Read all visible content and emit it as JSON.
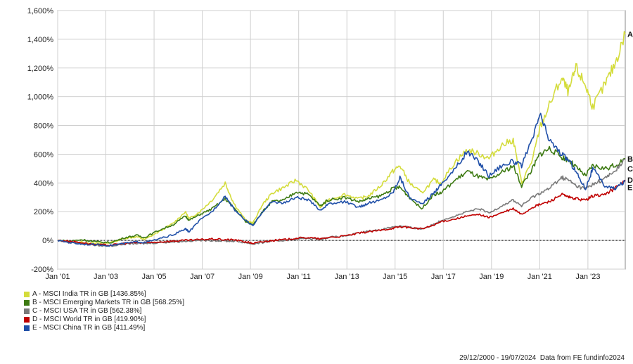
{
  "chart_data": {
    "type": "line",
    "ylim": [
      -200,
      1600
    ],
    "yticks": [
      "-200%",
      "0%",
      "200%",
      "400%",
      "600%",
      "800%",
      "1,000%",
      "1,200%",
      "1,400%",
      "1,600%"
    ],
    "yvals": [
      -200,
      0,
      200,
      400,
      600,
      800,
      1000,
      1200,
      1400,
      1600
    ],
    "xlim": [
      2001.0,
      2024.55
    ],
    "xticks": [
      "Jan '01",
      "Jan '03",
      "Jan '05",
      "Jan '07",
      "Jan '09",
      "Jan '11",
      "Jan '13",
      "Jan '15",
      "Jan '17",
      "Jan '19",
      "Jan '21",
      "Jan '23"
    ],
    "xtickvals": [
      2001,
      2003,
      2005,
      2007,
      2009,
      2011,
      2013,
      2015,
      2017,
      2019,
      2021,
      2023
    ],
    "grid": true,
    "legend_position": "bottom-left",
    "series": [
      {
        "name": "A - MSCI India TR in GB [1436.85%]",
        "end_label": "A",
        "color": "#d4dc3c",
        "points": [
          [
            2001.0,
            0
          ],
          [
            2001.5,
            -10
          ],
          [
            2002.0,
            -12
          ],
          [
            2002.6,
            -22
          ],
          [
            2003.2,
            -15
          ],
          [
            2003.8,
            15
          ],
          [
            2004.3,
            25
          ],
          [
            2004.6,
            5
          ],
          [
            2005.2,
            60
          ],
          [
            2005.8,
            120
          ],
          [
            2006.3,
            200
          ],
          [
            2006.45,
            150
          ],
          [
            2006.9,
            200
          ],
          [
            2007.4,
            280
          ],
          [
            2007.95,
            400
          ],
          [
            2008.3,
            260
          ],
          [
            2008.8,
            140
          ],
          [
            2009.1,
            120
          ],
          [
            2009.5,
            250
          ],
          [
            2009.9,
            330
          ],
          [
            2010.4,
            370
          ],
          [
            2010.9,
            420
          ],
          [
            2011.4,
            350
          ],
          [
            2011.9,
            230
          ],
          [
            2012.2,
            280
          ],
          [
            2012.9,
            320
          ],
          [
            2013.5,
            290
          ],
          [
            2013.9,
            310
          ],
          [
            2014.4,
            380
          ],
          [
            2014.9,
            480
          ],
          [
            2015.2,
            520
          ],
          [
            2015.6,
            400
          ],
          [
            2016.1,
            330
          ],
          [
            2016.6,
            420
          ],
          [
            2016.9,
            400
          ],
          [
            2017.5,
            550
          ],
          [
            2018.0,
            630
          ],
          [
            2018.5,
            600
          ],
          [
            2018.9,
            570
          ],
          [
            2019.4,
            660
          ],
          [
            2019.9,
            700
          ],
          [
            2020.25,
            400
          ],
          [
            2020.7,
            560
          ],
          [
            2021.0,
            780
          ],
          [
            2021.4,
            940
          ],
          [
            2021.9,
            1130
          ],
          [
            2022.2,
            1030
          ],
          [
            2022.5,
            1200
          ],
          [
            2022.9,
            1080
          ],
          [
            2023.2,
            930
          ],
          [
            2023.7,
            1080
          ],
          [
            2024.1,
            1220
          ],
          [
            2024.55,
            1436
          ]
        ]
      },
      {
        "name": "B - MSCI Emerging Markets TR in GB [568.25%]",
        "end_label": "B",
        "color": "#3d7a12",
        "points": [
          [
            2001.0,
            0
          ],
          [
            2001.5,
            -5
          ],
          [
            2002.0,
            5
          ],
          [
            2002.6,
            -10
          ],
          [
            2003.2,
            -15
          ],
          [
            2003.8,
            20
          ],
          [
            2004.3,
            35
          ],
          [
            2004.6,
            20
          ],
          [
            2005.2,
            70
          ],
          [
            2005.8,
            110
          ],
          [
            2006.3,
            170
          ],
          [
            2006.45,
            140
          ],
          [
            2006.9,
            180
          ],
          [
            2007.4,
            220
          ],
          [
            2007.95,
            290
          ],
          [
            2008.3,
            230
          ],
          [
            2008.8,
            130
          ],
          [
            2009.1,
            110
          ],
          [
            2009.5,
            200
          ],
          [
            2009.9,
            270
          ],
          [
            2010.4,
            280
          ],
          [
            2010.9,
            340
          ],
          [
            2011.4,
            320
          ],
          [
            2011.9,
            240
          ],
          [
            2012.2,
            280
          ],
          [
            2012.9,
            300
          ],
          [
            2013.5,
            270
          ],
          [
            2013.9,
            290
          ],
          [
            2014.4,
            310
          ],
          [
            2014.9,
            360
          ],
          [
            2015.2,
            370
          ],
          [
            2015.6,
            300
          ],
          [
            2016.1,
            220
          ],
          [
            2016.6,
            320
          ],
          [
            2016.9,
            330
          ],
          [
            2017.5,
            420
          ],
          [
            2018.0,
            480
          ],
          [
            2018.5,
            440
          ],
          [
            2018.9,
            420
          ],
          [
            2019.4,
            470
          ],
          [
            2019.9,
            520
          ],
          [
            2020.25,
            380
          ],
          [
            2020.7,
            500
          ],
          [
            2021.0,
            600
          ],
          [
            2021.4,
            640
          ],
          [
            2021.9,
            580
          ],
          [
            2022.2,
            560
          ],
          [
            2022.5,
            510
          ],
          [
            2022.9,
            450
          ],
          [
            2023.2,
            520
          ],
          [
            2023.7,
            500
          ],
          [
            2024.1,
            520
          ],
          [
            2024.55,
            568
          ]
        ]
      },
      {
        "name": "C - MSCI USA TR in GB [562.38%]",
        "end_label": "C",
        "color": "#7a7a7a",
        "points": [
          [
            2001.0,
            0
          ],
          [
            2001.5,
            -10
          ],
          [
            2002.0,
            -20
          ],
          [
            2002.6,
            -35
          ],
          [
            2003.2,
            -38
          ],
          [
            2003.8,
            -25
          ],
          [
            2004.3,
            -20
          ],
          [
            2004.6,
            -22
          ],
          [
            2005.2,
            -15
          ],
          [
            2005.8,
            -10
          ],
          [
            2006.3,
            -5
          ],
          [
            2006.9,
            0
          ],
          [
            2007.4,
            0
          ],
          [
            2007.95,
            -5
          ],
          [
            2008.3,
            -5
          ],
          [
            2008.8,
            -15
          ],
          [
            2009.1,
            -25
          ],
          [
            2009.5,
            -15
          ],
          [
            2009.9,
            -5
          ],
          [
            2010.4,
            0
          ],
          [
            2010.9,
            10
          ],
          [
            2011.4,
            15
          ],
          [
            2011.9,
            5
          ],
          [
            2012.2,
            20
          ],
          [
            2012.9,
            30
          ],
          [
            2013.5,
            50
          ],
          [
            2013.9,
            65
          ],
          [
            2014.4,
            75
          ],
          [
            2014.9,
            95
          ],
          [
            2015.2,
            100
          ],
          [
            2015.6,
            90
          ],
          [
            2016.1,
            80
          ],
          [
            2016.6,
            110
          ],
          [
            2016.9,
            140
          ],
          [
            2017.5,
            170
          ],
          [
            2018.0,
            200
          ],
          [
            2018.5,
            220
          ],
          [
            2018.9,
            190
          ],
          [
            2019.4,
            240
          ],
          [
            2019.9,
            280
          ],
          [
            2020.25,
            240
          ],
          [
            2020.7,
            300
          ],
          [
            2021.0,
            330
          ],
          [
            2021.4,
            360
          ],
          [
            2021.9,
            440
          ],
          [
            2022.2,
            420
          ],
          [
            2022.5,
            380
          ],
          [
            2022.9,
            360
          ],
          [
            2023.2,
            390
          ],
          [
            2023.7,
            430
          ],
          [
            2024.1,
            480
          ],
          [
            2024.55,
            562
          ]
        ]
      },
      {
        "name": "D - MSCI World TR in GB [419.90%]",
        "end_label": "D",
        "color": "#c00000",
        "points": [
          [
            2001.0,
            0
          ],
          [
            2001.5,
            -5
          ],
          [
            2002.0,
            -15
          ],
          [
            2002.6,
            -30
          ],
          [
            2003.2,
            -33
          ],
          [
            2003.8,
            -20
          ],
          [
            2004.3,
            -15
          ],
          [
            2004.6,
            -18
          ],
          [
            2005.2,
            -10
          ],
          [
            2005.8,
            -5
          ],
          [
            2006.3,
            0
          ],
          [
            2006.9,
            5
          ],
          [
            2007.4,
            10
          ],
          [
            2007.95,
            5
          ],
          [
            2008.3,
            5
          ],
          [
            2008.8,
            -10
          ],
          [
            2009.1,
            -20
          ],
          [
            2009.5,
            -10
          ],
          [
            2009.9,
            0
          ],
          [
            2010.4,
            5
          ],
          [
            2010.9,
            15
          ],
          [
            2011.4,
            20
          ],
          [
            2011.9,
            10
          ],
          [
            2012.2,
            20
          ],
          [
            2012.9,
            30
          ],
          [
            2013.5,
            50
          ],
          [
            2013.9,
            60
          ],
          [
            2014.4,
            70
          ],
          [
            2014.9,
            85
          ],
          [
            2015.2,
            95
          ],
          [
            2015.6,
            90
          ],
          [
            2016.1,
            80
          ],
          [
            2016.6,
            105
          ],
          [
            2016.9,
            130
          ],
          [
            2017.5,
            150
          ],
          [
            2018.0,
            170
          ],
          [
            2018.5,
            180
          ],
          [
            2018.9,
            160
          ],
          [
            2019.4,
            190
          ],
          [
            2019.9,
            220
          ],
          [
            2020.25,
            180
          ],
          [
            2020.7,
            230
          ],
          [
            2021.0,
            250
          ],
          [
            2021.4,
            270
          ],
          [
            2021.9,
            320
          ],
          [
            2022.2,
            300
          ],
          [
            2022.5,
            290
          ],
          [
            2022.9,
            280
          ],
          [
            2023.2,
            310
          ],
          [
            2023.7,
            320
          ],
          [
            2024.1,
            360
          ],
          [
            2024.55,
            420
          ]
        ]
      },
      {
        "name": "E - MSCI China TR in GB [411.49%]",
        "end_label": "E",
        "color": "#1f4fa8",
        "points": [
          [
            2001.0,
            0
          ],
          [
            2001.5,
            -15
          ],
          [
            2002.0,
            -25
          ],
          [
            2002.6,
            -30
          ],
          [
            2003.2,
            -35
          ],
          [
            2003.8,
            -20
          ],
          [
            2004.3,
            -10
          ],
          [
            2004.6,
            -15
          ],
          [
            2005.2,
            10
          ],
          [
            2005.8,
            40
          ],
          [
            2006.3,
            80
          ],
          [
            2006.45,
            60
          ],
          [
            2006.9,
            140
          ],
          [
            2007.4,
            200
          ],
          [
            2007.95,
            310
          ],
          [
            2008.3,
            220
          ],
          [
            2008.8,
            140
          ],
          [
            2009.1,
            100
          ],
          [
            2009.5,
            200
          ],
          [
            2009.9,
            270
          ],
          [
            2010.4,
            260
          ],
          [
            2010.9,
            300
          ],
          [
            2011.4,
            280
          ],
          [
            2011.9,
            210
          ],
          [
            2012.2,
            250
          ],
          [
            2012.9,
            270
          ],
          [
            2013.5,
            230
          ],
          [
            2013.9,
            260
          ],
          [
            2014.4,
            280
          ],
          [
            2014.9,
            330
          ],
          [
            2015.2,
            440
          ],
          [
            2015.6,
            300
          ],
          [
            2016.1,
            250
          ],
          [
            2016.6,
            330
          ],
          [
            2016.9,
            390
          ],
          [
            2017.5,
            500
          ],
          [
            2018.0,
            620
          ],
          [
            2018.5,
            540
          ],
          [
            2018.9,
            450
          ],
          [
            2019.4,
            520
          ],
          [
            2019.9,
            550
          ],
          [
            2020.25,
            520
          ],
          [
            2020.7,
            700
          ],
          [
            2021.0,
            880
          ],
          [
            2021.4,
            700
          ],
          [
            2021.9,
            600
          ],
          [
            2022.2,
            560
          ],
          [
            2022.5,
            480
          ],
          [
            2022.9,
            360
          ],
          [
            2023.2,
            500
          ],
          [
            2023.7,
            380
          ],
          [
            2024.1,
            360
          ],
          [
            2024.55,
            411
          ]
        ]
      }
    ],
    "footer": [
      "29/12/2000 - 19/07/2024",
      "Data from FE fundinfo2024"
    ]
  }
}
